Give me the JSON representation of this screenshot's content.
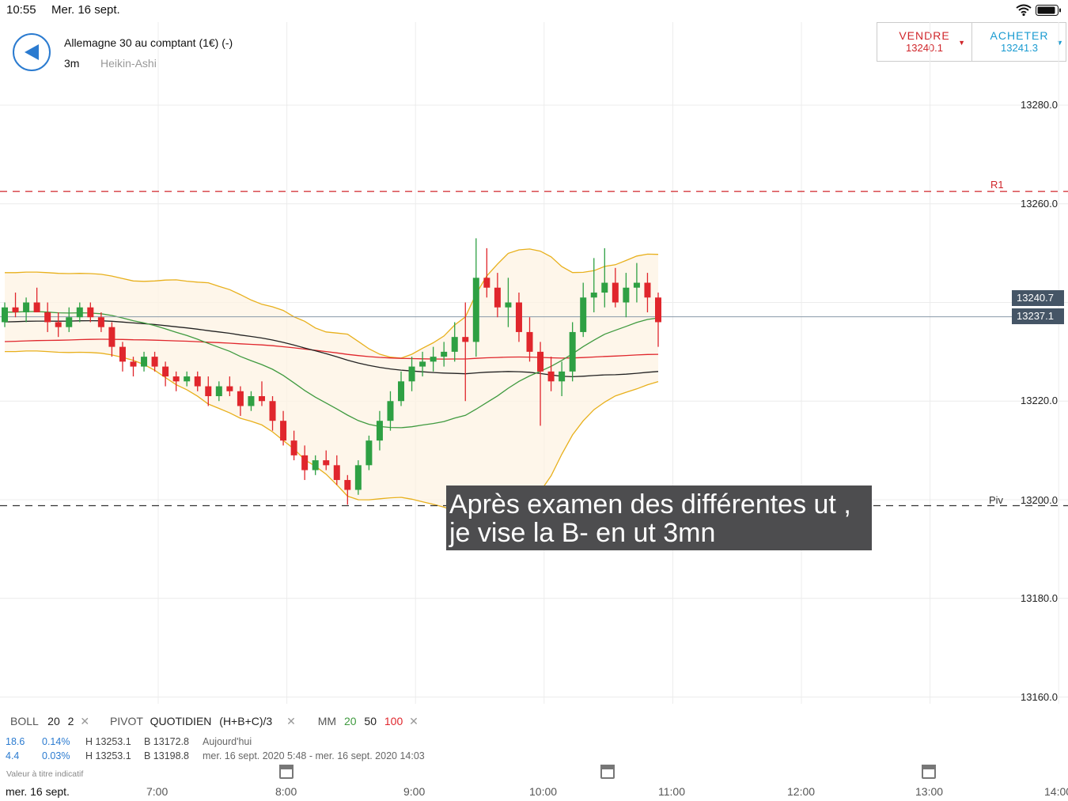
{
  "status_bar": {
    "time": "10:55",
    "date": "Mer. 16 sept."
  },
  "header": {
    "instrument": "Allemagne 30 au comptant (1€) (-)",
    "timeframe": "3m",
    "chart_type": "Heikin-Ashi"
  },
  "trade": {
    "sell_label": "VENDRE",
    "sell_price": "13240.1",
    "buy_label": "ACHETER",
    "buy_price": "13241.3"
  },
  "price_axis": [
    "13280.0",
    "13260.0",
    "13220.0",
    "13200.0",
    "13180.0",
    "13160.0"
  ],
  "price_tags": {
    "upper": "13240.7",
    "lower": "13237.1"
  },
  "level_labels": {
    "r1": "R1",
    "pivot": "Piv"
  },
  "annotation": {
    "line1": "Après examen des différentes ut ,",
    "line2": "je vise la B- en ut 3mn"
  },
  "legend": {
    "boll": "BOLL",
    "boll_p1": "20",
    "boll_p2": "2",
    "pivot": "PIVOT",
    "pivot_mode": "QUOTIDIEN",
    "pivot_formula": "(H+B+C)/3",
    "mm": "MM",
    "mm_20": "20",
    "mm_50": "50",
    "mm_100": "100"
  },
  "info": {
    "row1": {
      "change": "18.6",
      "pct": "0.14%",
      "high": "H 13253.1",
      "low": "B 13172.8",
      "period": "Aujourd'hui"
    },
    "row2": {
      "change": "4.4",
      "pct": "0.03%",
      "high": "H 13253.1",
      "low": "B 13198.8",
      "period": "mer. 16 sept. 2020 5:48 - mer. 16 sept. 2020 14:03"
    },
    "disclaimer": "Valeur à titre indicatif"
  },
  "time_axis": {
    "date": "mer. 16 sept.",
    "ticks": [
      "7:00",
      "8:00",
      "9:00",
      "10:00",
      "11:00",
      "12:00",
      "13:00",
      "14:00"
    ]
  },
  "colors": {
    "up": "#2ea043",
    "down": "#e0262c",
    "boll": "#e8b01c",
    "ma20": "#3f9a3f",
    "ma50": "#222222",
    "ma100": "#e0262c",
    "r1": "#d0262b",
    "pivot": "#333333"
  },
  "chart_data": {
    "type": "candlestick",
    "instrument": "Allemagne 30 au comptant (1€) (-)",
    "timeframe": "3m",
    "y_ticks": [
      13280,
      13260,
      13220,
      13200,
      13180,
      13160
    ],
    "x_ticks": [
      "7:00",
      "8:00",
      "9:00",
      "10:00",
      "11:00",
      "12:00",
      "13:00",
      "14:00"
    ],
    "levels": {
      "R1": 13262.5,
      "Piv": 13198.8
    },
    "last": {
      "ask": 13240.7,
      "bid": 13237.1
    },
    "indicators": [
      "BOLL 20 2",
      "PIVOT QUOTIDIEN (H+B+C)/3",
      "MM 20",
      "MM 50",
      "MM 100"
    ],
    "candles": [
      {
        "o": 13236,
        "h": 13240,
        "l": 13235,
        "c": 13239
      },
      {
        "o": 13239,
        "h": 13242,
        "l": 13237,
        "c": 13238
      },
      {
        "o": 13238,
        "h": 13241,
        "l": 13236,
        "c": 13240
      },
      {
        "o": 13240,
        "h": 13243,
        "l": 13238,
        "c": 13238
      },
      {
        "o": 13238,
        "h": 13240,
        "l": 13234,
        "c": 13236
      },
      {
        "o": 13236,
        "h": 13238,
        "l": 13233,
        "c": 13235
      },
      {
        "o": 13235,
        "h": 13239,
        "l": 13234,
        "c": 13237
      },
      {
        "o": 13237,
        "h": 13240,
        "l": 13236,
        "c": 13239
      },
      {
        "o": 13239,
        "h": 13240,
        "l": 13236,
        "c": 13237
      },
      {
        "o": 13237,
        "h": 13238,
        "l": 13234,
        "c": 13235
      },
      {
        "o": 13235,
        "h": 13236,
        "l": 13229,
        "c": 13231
      },
      {
        "o": 13231,
        "h": 13232,
        "l": 13226,
        "c": 13228
      },
      {
        "o": 13228,
        "h": 13229,
        "l": 13225,
        "c": 13227
      },
      {
        "o": 13227,
        "h": 13230,
        "l": 13226,
        "c": 13229
      },
      {
        "o": 13229,
        "h": 13230,
        "l": 13226,
        "c": 13227
      },
      {
        "o": 13227,
        "h": 13228,
        "l": 13223,
        "c": 13225
      },
      {
        "o": 13225,
        "h": 13226,
        "l": 13222,
        "c": 13224
      },
      {
        "o": 13224,
        "h": 13226,
        "l": 13223,
        "c": 13225
      },
      {
        "o": 13225,
        "h": 13226,
        "l": 13222,
        "c": 13223
      },
      {
        "o": 13223,
        "h": 13225,
        "l": 13219,
        "c": 13221
      },
      {
        "o": 13221,
        "h": 13224,
        "l": 13220,
        "c": 13223
      },
      {
        "o": 13223,
        "h": 13225,
        "l": 13221,
        "c": 13222
      },
      {
        "o": 13222,
        "h": 13223,
        "l": 13217,
        "c": 13219
      },
      {
        "o": 13219,
        "h": 13222,
        "l": 13218,
        "c": 13221
      },
      {
        "o": 13221,
        "h": 13224,
        "l": 13219,
        "c": 13220
      },
      {
        "o": 13220,
        "h": 13221,
        "l": 13214,
        "c": 13216
      },
      {
        "o": 13216,
        "h": 13218,
        "l": 13211,
        "c": 13212
      },
      {
        "o": 13212,
        "h": 13214,
        "l": 13208,
        "c": 13209
      },
      {
        "o": 13209,
        "h": 13211,
        "l": 13204,
        "c": 13206
      },
      {
        "o": 13206,
        "h": 13209,
        "l": 13205,
        "c": 13208
      },
      {
        "o": 13208,
        "h": 13210,
        "l": 13206,
        "c": 13207
      },
      {
        "o": 13207,
        "h": 13209,
        "l": 13203,
        "c": 13204
      },
      {
        "o": 13204,
        "h": 13205,
        "l": 13199,
        "c": 13202
      },
      {
        "o": 13202,
        "h": 13208,
        "l": 13201,
        "c": 13207
      },
      {
        "o": 13207,
        "h": 13213,
        "l": 13206,
        "c": 13212
      },
      {
        "o": 13212,
        "h": 13218,
        "l": 13210,
        "c": 13216
      },
      {
        "o": 13216,
        "h": 13222,
        "l": 13214,
        "c": 13220
      },
      {
        "o": 13220,
        "h": 13226,
        "l": 13219,
        "c": 13224
      },
      {
        "o": 13224,
        "h": 13229,
        "l": 13222,
        "c": 13227
      },
      {
        "o": 13227,
        "h": 13230,
        "l": 13225,
        "c": 13228
      },
      {
        "o": 13228,
        "h": 13231,
        "l": 13226,
        "c": 13229
      },
      {
        "o": 13229,
        "h": 13232,
        "l": 13227,
        "c": 13230
      },
      {
        "o": 13230,
        "h": 13236,
        "l": 13228,
        "c": 13233
      },
      {
        "o": 13233,
        "h": 13240,
        "l": 13220,
        "c": 13232
      },
      {
        "o": 13232,
        "h": 13253,
        "l": 13229,
        "c": 13245
      },
      {
        "o": 13245,
        "h": 13251,
        "l": 13241,
        "c": 13243
      },
      {
        "o": 13243,
        "h": 13246,
        "l": 13237,
        "c": 13239
      },
      {
        "o": 13239,
        "h": 13245,
        "l": 13235,
        "c": 13240
      },
      {
        "o": 13240,
        "h": 13242,
        "l": 13232,
        "c": 13234
      },
      {
        "o": 13234,
        "h": 13237,
        "l": 13228,
        "c": 13230
      },
      {
        "o": 13230,
        "h": 13232,
        "l": 13215,
        "c": 13226
      },
      {
        "o": 13226,
        "h": 13229,
        "l": 13222,
        "c": 13224
      },
      {
        "o": 13224,
        "h": 13228,
        "l": 13221,
        "c": 13226
      },
      {
        "o": 13226,
        "h": 13236,
        "l": 13224,
        "c": 13234
      },
      {
        "o": 13234,
        "h": 13244,
        "l": 13233,
        "c": 13241
      },
      {
        "o": 13241,
        "h": 13249,
        "l": 13238,
        "c": 13242
      },
      {
        "o": 13242,
        "h": 13251,
        "l": 13239,
        "c": 13244
      },
      {
        "o": 13244,
        "h": 13247,
        "l": 13239,
        "c": 13240
      },
      {
        "o": 13240,
        "h": 13246,
        "l": 13237,
        "c": 13243
      },
      {
        "o": 13243,
        "h": 13248,
        "l": 13240,
        "c": 13244
      },
      {
        "o": 13244,
        "h": 13246,
        "l": 13238,
        "c": 13241
      },
      {
        "o": 13241,
        "h": 13242,
        "l": 13231,
        "c": 13236
      }
    ]
  }
}
